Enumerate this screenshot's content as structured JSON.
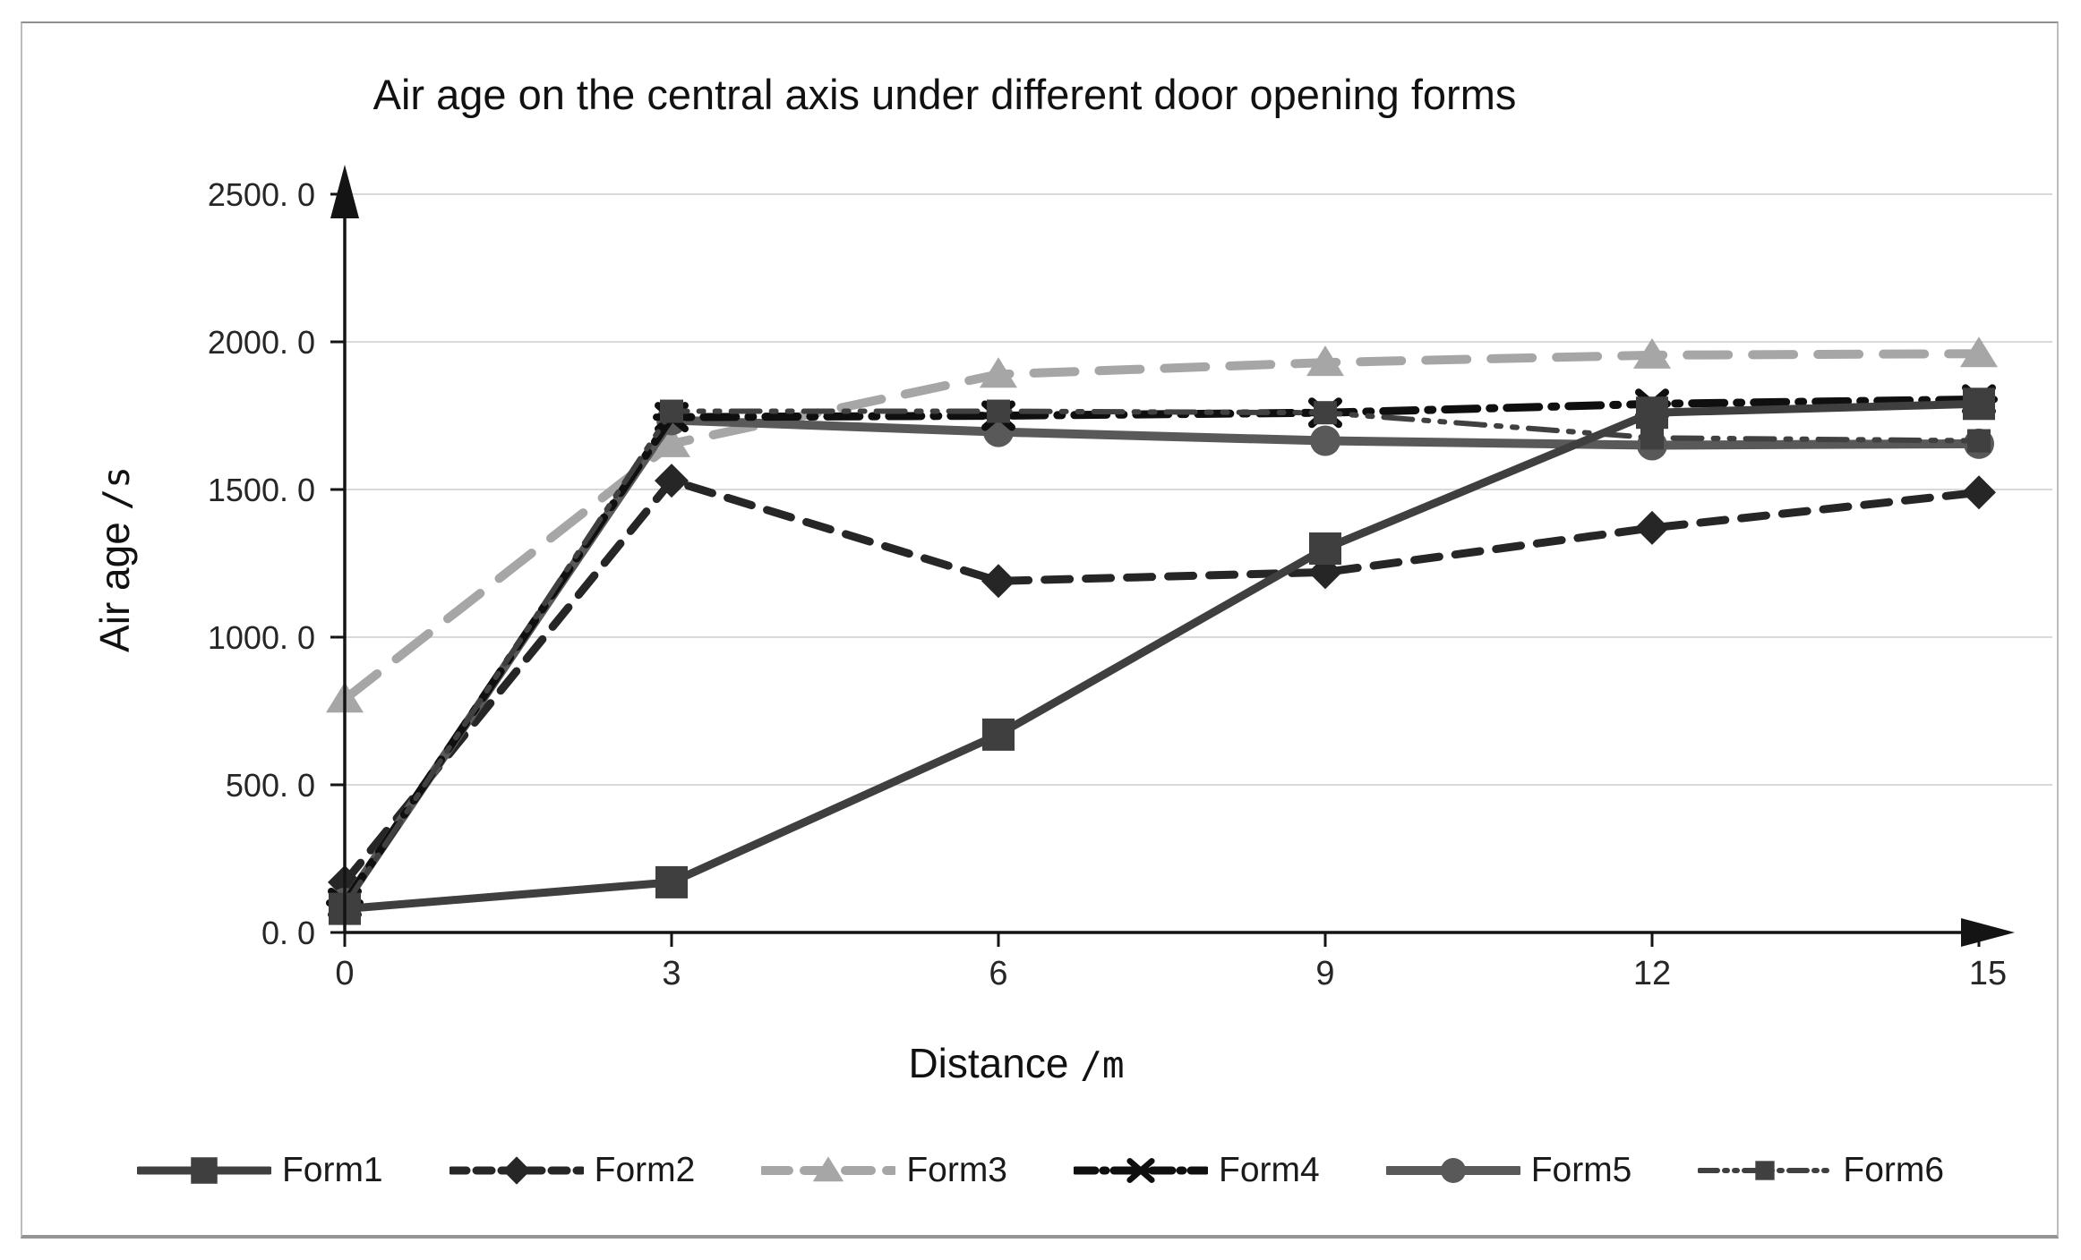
{
  "page": {
    "background": "#ffffff",
    "frame_border_color": "#9a9a9a"
  },
  "chart_data": {
    "type": "line",
    "title": "Air age on the central axis under different door opening forms",
    "xlabel": "Distance",
    "xlabel_unit": "/m",
    "ylabel": "Air age",
    "ylabel_unit": "/s",
    "x": [
      0,
      3,
      6,
      9,
      12,
      15
    ],
    "x_tick_labels": [
      "0",
      "3",
      "6",
      "9",
      "12",
      "15"
    ],
    "y_ticks": [
      0,
      500,
      1000,
      1500,
      2000,
      2500
    ],
    "y_tick_labels": [
      "0. 0",
      "500. 0",
      "1000. 0",
      "1500. 0",
      "2000. 0",
      "2500. 0"
    ],
    "xlim": [
      0,
      15
    ],
    "ylim": [
      0,
      2500
    ],
    "grid": true,
    "gridline_color": "#d9d9d9",
    "axis_color": "#141414",
    "tick_label_color": "#262626",
    "legend_position": "bottom",
    "series": [
      {
        "name": "Form1",
        "values": [
          80,
          170,
          670,
          1300,
          1760,
          1790
        ],
        "color": "#3f3f3f",
        "marker": "square",
        "line_style": "solid",
        "width": 9
      },
      {
        "name": "Form2",
        "values": [
          170,
          1530,
          1190,
          1220,
          1370,
          1490
        ],
        "color": "#262626",
        "marker": "diamond",
        "line_style": "dashed",
        "width": 9
      },
      {
        "name": "Form3",
        "values": [
          790,
          1655,
          1890,
          1930,
          1955,
          1960
        ],
        "color": "#a6a6a6",
        "marker": "triangle",
        "line_style": "long-dash",
        "width": 10
      },
      {
        "name": "Form4",
        "values": [
          100,
          1745,
          1750,
          1760,
          1790,
          1805
        ],
        "color": "#0f0f0f",
        "marker": "x",
        "line_style": "dash-dot",
        "width": 9
      },
      {
        "name": "Form5",
        "values": [
          100,
          1735,
          1695,
          1665,
          1650,
          1655
        ],
        "color": "#595959",
        "marker": "circle",
        "line_style": "solid",
        "width": 10
      },
      {
        "name": "Form6",
        "values": [
          90,
          1765,
          1765,
          1760,
          1675,
          1665
        ],
        "color": "#404040",
        "marker": "square-small",
        "line_style": "dash-dot-dot",
        "width": 6
      }
    ]
  }
}
